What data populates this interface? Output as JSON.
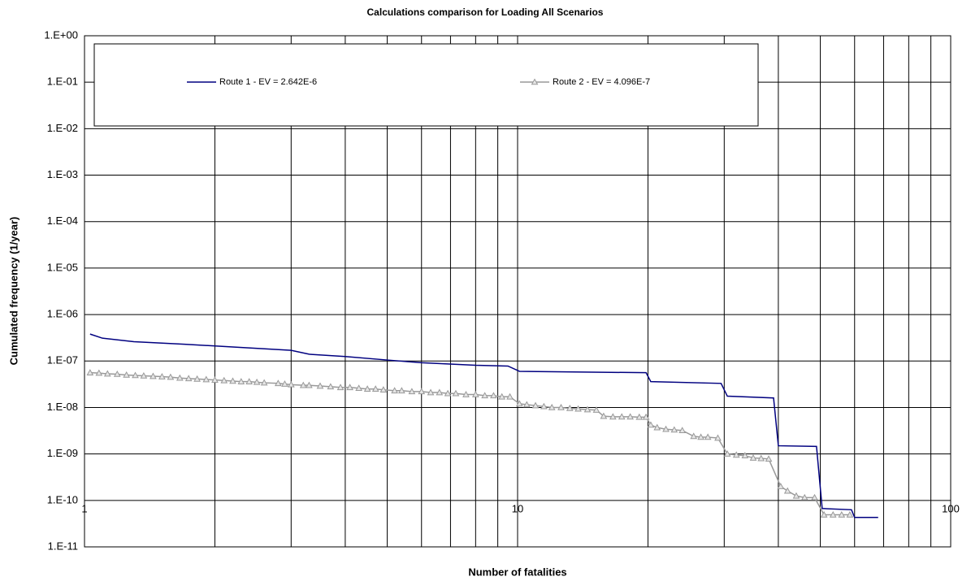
{
  "chart_data": {
    "type": "line",
    "title": "Calculations comparison for Loading All Scenarios",
    "x_label": "Number of fatalities",
    "y_label": "Cumulated frequency (1/year)",
    "xlog": true,
    "ylog": true,
    "grid": true,
    "xlim": [
      1,
      100
    ],
    "xticks": [
      1,
      10,
      100
    ],
    "xgrid": [
      2,
      3,
      4,
      5,
      6,
      7,
      8,
      9,
      20,
      30,
      40,
      50,
      60,
      70,
      80,
      90
    ],
    "xaxis_at": 1e-10,
    "ylim": [
      1e-11,
      1
    ],
    "yticks": [
      {
        "value": 1e-11,
        "label": "1.E-11"
      },
      {
        "value": 1e-10,
        "label": "1.E-10"
      },
      {
        "value": 1e-09,
        "label": "1.E-09"
      },
      {
        "value": 1e-08,
        "label": "1.E-08"
      },
      {
        "value": 1e-07,
        "label": "1.E-07"
      },
      {
        "value": 1e-06,
        "label": "1.E-06"
      },
      {
        "value": 1e-05,
        "label": "1.E-05"
      },
      {
        "value": 0.0001,
        "label": "1.E-04"
      },
      {
        "value": 0.001,
        "label": "1.E-03"
      },
      {
        "value": 0.01,
        "label": "1.E-02"
      },
      {
        "value": 0.1,
        "label": "1.E-01"
      },
      {
        "value": 1,
        "label": "1.E+00"
      }
    ],
    "legend": "top",
    "series": [
      {
        "name": "Route 1 - EV = 2.642E-6",
        "color": "#000080",
        "marker": "none",
        "x": [
          1.03,
          1.1,
          1.3,
          1.7,
          2.2,
          3.0,
          3.3,
          4.0,
          5.0,
          6.0,
          8.0,
          9.5,
          10.1,
          19.8,
          20.3,
          29.5,
          30.5,
          39,
          40,
          49,
          50.5,
          59,
          60,
          68
        ],
        "values": [
          3.8e-07,
          3.1e-07,
          2.6e-07,
          2.3e-07,
          2e-07,
          1.7e-07,
          1.4e-07,
          1.25e-07,
          1.05e-07,
          9.2e-08,
          8.1e-08,
          7.8e-08,
          6e-08,
          5.6e-08,
          3.6e-08,
          3.3e-08,
          1.75e-08,
          1.6e-08,
          1.5e-09,
          1.45e-09,
          6.7e-11,
          6.3e-11,
          4.3e-11,
          4.3e-11
        ]
      },
      {
        "name": "Route 2 - EV = 4.096E-7",
        "color": "#999999",
        "marker": "triangle",
        "x": [
          1.03,
          1.08,
          1.13,
          1.19,
          1.25,
          1.31,
          1.37,
          1.44,
          1.51,
          1.58,
          1.66,
          1.74,
          1.82,
          1.91,
          2.0,
          2.1,
          2.2,
          2.3,
          2.4,
          2.5,
          2.6,
          2.8,
          2.9,
          3.0,
          3.2,
          3.3,
          3.5,
          3.7,
          3.9,
          4.1,
          4.3,
          4.5,
          4.7,
          4.9,
          5.2,
          5.4,
          5.7,
          6.0,
          6.3,
          6.6,
          6.9,
          7.2,
          7.6,
          8.0,
          8.4,
          8.8,
          9.2,
          9.6,
          10.1,
          10.5,
          11,
          11.5,
          12,
          12.6,
          13.2,
          13.8,
          14.5,
          15.2,
          15.8,
          16.6,
          17.4,
          18.2,
          19.1,
          19.8,
          20.3,
          21,
          22,
          23,
          24,
          25.5,
          26.5,
          27.5,
          29,
          30.5,
          32,
          33.5,
          35,
          36.5,
          38,
          40.5,
          42,
          44,
          46,
          48.5,
          51,
          53.5,
          56,
          58.5
        ],
        "values": [
          5.6e-08,
          5.5e-08,
          5.3e-08,
          5.2e-08,
          5e-08,
          4.9e-08,
          4.8e-08,
          4.7e-08,
          4.6e-08,
          4.5e-08,
          4.3e-08,
          4.2e-08,
          4.1e-08,
          4e-08,
          3.9e-08,
          3.8e-08,
          3.7e-08,
          3.6e-08,
          3.6e-08,
          3.5e-08,
          3.4e-08,
          3.3e-08,
          3.2e-08,
          3.1e-08,
          3e-08,
          3e-08,
          2.9e-08,
          2.8e-08,
          2.7e-08,
          2.7e-08,
          2.6e-08,
          2.5e-08,
          2.5e-08,
          2.4e-08,
          2.3e-08,
          2.3e-08,
          2.2e-08,
          2.2e-08,
          2.1e-08,
          2.1e-08,
          2e-08,
          2e-08,
          1.9e-08,
          1.9e-08,
          1.8e-08,
          1.8e-08,
          1.7e-08,
          1.7e-08,
          1.2e-08,
          1.15e-08,
          1.1e-08,
          1.05e-08,
          1e-08,
          1e-08,
          9.6e-09,
          9.3e-09,
          9e-09,
          8.8e-09,
          6.5e-09,
          6.3e-09,
          6.3e-09,
          6.3e-09,
          6.2e-09,
          6.2e-09,
          4.2e-09,
          3.7e-09,
          3.4e-09,
          3.3e-09,
          3.2e-09,
          2.4e-09,
          2.3e-09,
          2.3e-09,
          2.2e-09,
          1e-09,
          9.5e-10,
          9.2e-10,
          8.2e-10,
          8e-10,
          7.8e-10,
          2e-10,
          1.6e-10,
          1.25e-10,
          1.15e-10,
          1.15e-10,
          4.9e-11,
          4.9e-11,
          4.9e-11,
          4.9e-11
        ]
      }
    ]
  }
}
